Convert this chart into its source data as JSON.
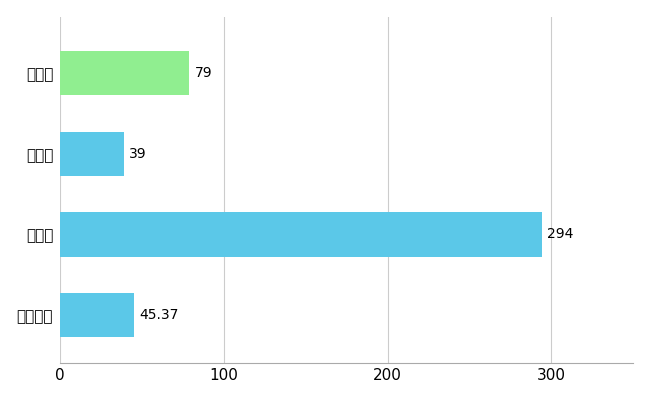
{
  "categories": [
    "別府市",
    "県平均",
    "県最大",
    "全国平均"
  ],
  "values": [
    79,
    39,
    294,
    45.37
  ],
  "labels": [
    "79",
    "39",
    "294",
    "45.37"
  ],
  "bar_colors": [
    "#90EE90",
    "#5BC8E8",
    "#5BC8E8",
    "#5BC8E8"
  ],
  "xlim": [
    0,
    350
  ],
  "xticks": [
    0,
    100,
    200,
    300
  ],
  "background_color": "#ffffff",
  "grid_color": "#cccccc",
  "bar_height": 0.55,
  "label_fontsize": 10,
  "tick_fontsize": 11
}
